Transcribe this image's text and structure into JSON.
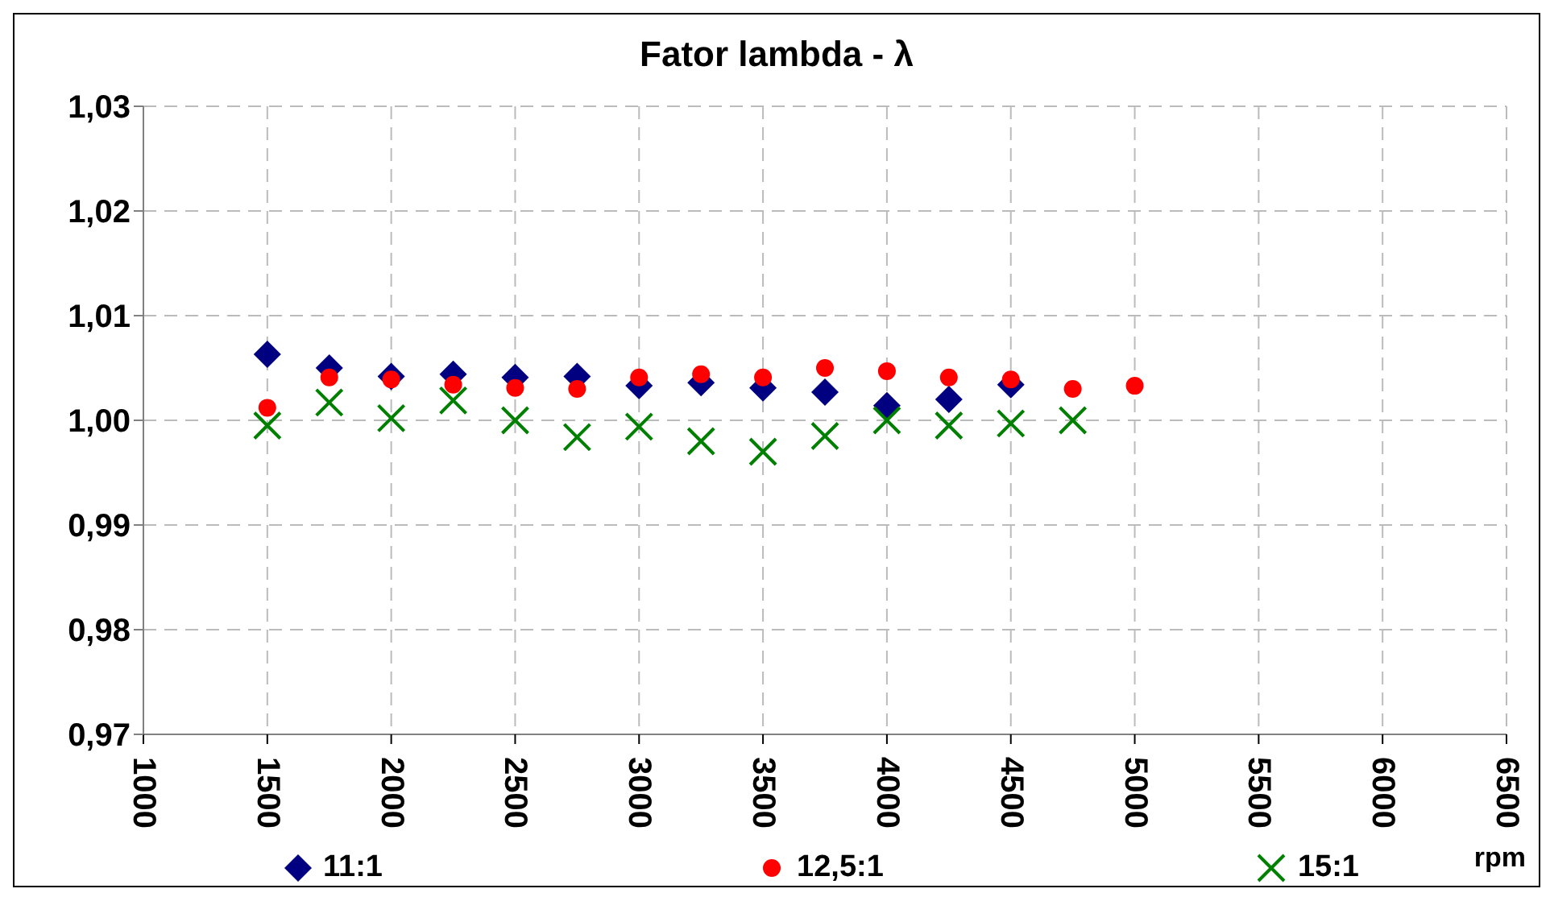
{
  "chart_data": {
    "type": "scatter",
    "title": "Fator lambda - λ",
    "xlabel": "rpm",
    "xlim": [
      1000,
      6500
    ],
    "xticks": [
      1000,
      1500,
      2000,
      2500,
      3000,
      3500,
      4000,
      4500,
      5000,
      5500,
      6000,
      6500
    ],
    "ylim": [
      0.97,
      1.03
    ],
    "yticks": [
      {
        "value": 0.97,
        "label": "0,97"
      },
      {
        "value": 0.98,
        "label": "0,98"
      },
      {
        "value": 0.99,
        "label": "0,99"
      },
      {
        "value": 1.0,
        "label": "1,00"
      },
      {
        "value": 1.01,
        "label": "1,01"
      },
      {
        "value": 1.02,
        "label": "1,02"
      },
      {
        "value": 1.03,
        "label": "1,03"
      }
    ],
    "grid": true,
    "legend": "bottom",
    "series": [
      {
        "name": "11:1",
        "color": "#000080",
        "marker": "diamond",
        "x": [
          1500,
          1750,
          2000,
          2250,
          2500,
          2750,
          3000,
          3250,
          3500,
          3750,
          4000,
          4250,
          4500
        ],
        "values": [
          1.0063,
          1.005,
          1.0042,
          1.0044,
          1.0041,
          1.0042,
          1.0033,
          1.0036,
          1.0031,
          1.0027,
          1.0014,
          1.002,
          1.0034
        ]
      },
      {
        "name": "12,5:1",
        "color": "#ff0000",
        "marker": "circle",
        "x": [
          1500,
          1750,
          2000,
          2250,
          2500,
          2750,
          3000,
          3250,
          3500,
          3750,
          4000,
          4250,
          4500,
          4750,
          5000
        ],
        "values": [
          1.0012,
          1.0041,
          1.0039,
          1.0034,
          1.0031,
          1.003,
          1.0041,
          1.0044,
          1.0041,
          1.005,
          1.0047,
          1.0041,
          1.0039,
          1.003,
          1.0033
        ]
      },
      {
        "name": "15:1",
        "color": "#008000",
        "marker": "cross",
        "x": [
          1500,
          1750,
          2000,
          2250,
          2500,
          2750,
          3000,
          3250,
          3500,
          3750,
          4000,
          4250,
          4500,
          4750
        ],
        "values": [
          0.9995,
          1.0017,
          1.0002,
          1.0019,
          1.0,
          0.9984,
          0.9994,
          0.998,
          0.997,
          0.9985,
          1.0,
          0.9995,
          0.9997,
          1.0
        ]
      }
    ]
  }
}
